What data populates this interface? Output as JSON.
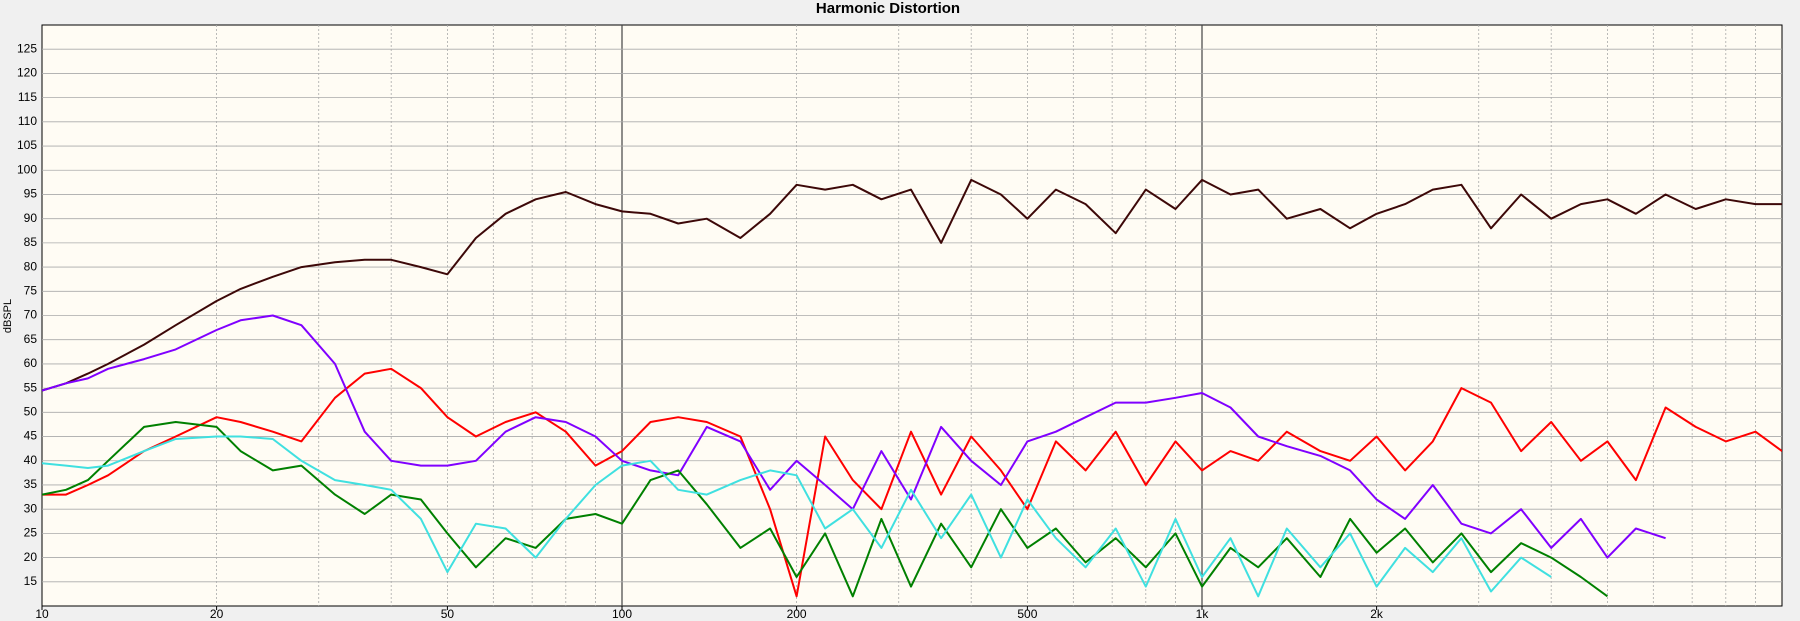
{
  "chart_data": {
    "type": "line",
    "title": "Harmonic Distortion",
    "y_label": "dBSPL",
    "log_x": true,
    "grid": true,
    "minor_grid": true,
    "xlim": [
      10,
      10000
    ],
    "ylim": [
      10,
      130
    ],
    "xticks": [
      10,
      20,
      50,
      100,
      200,
      500,
      {
        "value": 1000,
        "label": "1k"
      },
      {
        "value": 2000,
        "label": "2k"
      }
    ],
    "yticks": [
      15,
      20,
      25,
      30,
      35,
      40,
      45,
      50,
      55,
      60,
      65,
      70,
      75,
      80,
      85,
      90,
      95,
      100,
      105,
      110,
      115,
      120,
      125
    ],
    "x": [
      10,
      11,
      12,
      13,
      15,
      17,
      20,
      22,
      25,
      28,
      32,
      36,
      40,
      45,
      50,
      56,
      63,
      71,
      80,
      90,
      100,
      112,
      125,
      140,
      160,
      180,
      200,
      224,
      250,
      280,
      315,
      355,
      400,
      450,
      500,
      560,
      630,
      710,
      800,
      900,
      1000,
      1120,
      1250,
      1400,
      1600,
      1800,
      2000,
      2240,
      2500,
      2800,
      3150,
      3550,
      4000,
      4500,
      5000,
      5600,
      6300,
      7100,
      8000,
      9000,
      10000
    ],
    "series": [
      {
        "color": "#3d0808",
        "values": [
          54.5,
          56,
          58,
          60,
          64,
          68,
          73,
          75.5,
          78,
          80,
          81,
          81.5,
          81.5,
          80,
          78.5,
          86,
          91,
          94,
          95.5,
          93,
          91.5,
          91,
          89,
          90,
          86,
          91,
          97,
          96,
          97,
          94,
          96,
          85,
          98,
          95,
          90,
          96,
          93,
          87,
          96,
          92,
          98,
          95,
          96,
          90,
          92,
          88,
          91,
          93,
          96,
          97,
          88,
          95,
          90,
          93,
          94,
          91,
          95,
          92,
          94,
          93,
          93
        ]
      },
      {
        "color": "#ff0000",
        "values": [
          33,
          33,
          35,
          37,
          42,
          45,
          49,
          48,
          46,
          44,
          53,
          58,
          59,
          55,
          49,
          45,
          48,
          50,
          46,
          39,
          42,
          48,
          49,
          48,
          45,
          30,
          12,
          45,
          36,
          30,
          46,
          33,
          45,
          38,
          30,
          44,
          38,
          46,
          35,
          44,
          38,
          42,
          40,
          46,
          42,
          40,
          45,
          38,
          44,
          55,
          52,
          42,
          48,
          40,
          44,
          36,
          51,
          47,
          44,
          46,
          42
        ]
      },
      {
        "color": "#8000ff",
        "values": [
          54.5,
          56,
          57,
          59,
          61,
          63,
          67,
          69,
          70,
          68,
          60,
          46,
          40,
          39,
          39,
          40,
          46,
          49,
          48,
          45,
          40,
          38,
          37,
          47,
          44,
          34,
          40,
          35,
          30,
          42,
          32,
          47,
          40,
          35,
          44,
          46,
          49,
          52,
          52,
          53,
          54,
          51,
          45,
          43,
          41,
          38,
          32,
          28,
          35,
          27,
          25,
          30,
          22,
          28,
          20,
          26,
          24,
          null,
          null,
          null,
          null
        ]
      },
      {
        "color": "#008000",
        "values": [
          33,
          34,
          36,
          40,
          47,
          48,
          47,
          42,
          38,
          39,
          33,
          29,
          33,
          32,
          25,
          18,
          24,
          22,
          28,
          29,
          27,
          36,
          38,
          31,
          22,
          26,
          16,
          25,
          12,
          28,
          14,
          27,
          18,
          30,
          22,
          26,
          19,
          24,
          18,
          25,
          14,
          22,
          18,
          24,
          16,
          28,
          21,
          26,
          19,
          25,
          17,
          23,
          20,
          16,
          12,
          null,
          null,
          null,
          null,
          null,
          null
        ]
      },
      {
        "color": "#40e0e0",
        "values": [
          39.5,
          39,
          38.5,
          39,
          42,
          44.5,
          45,
          45,
          44.5,
          40,
          36,
          35,
          34,
          28,
          17,
          27,
          26,
          20,
          28,
          35,
          39,
          40,
          34,
          33,
          36,
          38,
          37,
          26,
          30,
          22,
          34,
          24,
          33,
          20,
          32,
          24,
          18,
          26,
          14,
          28,
          16,
          24,
          12,
          26,
          18,
          25,
          14,
          22,
          17,
          24,
          13,
          20,
          16,
          null,
          null,
          null,
          null,
          null,
          null,
          null,
          null
        ]
      }
    ]
  }
}
